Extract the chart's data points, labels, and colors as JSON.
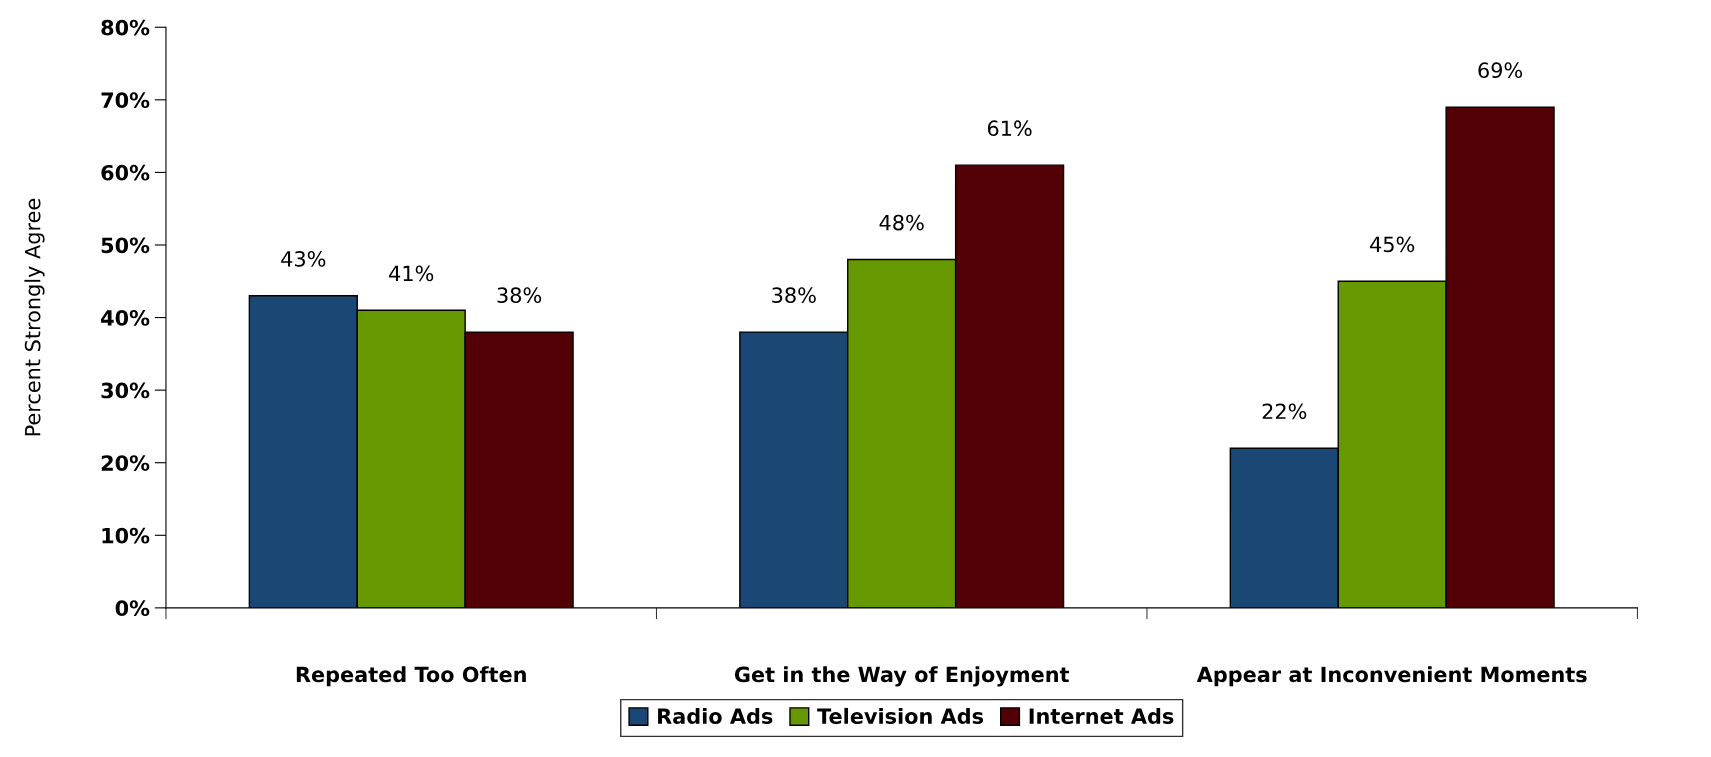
{
  "chart_data": {
    "type": "bar",
    "ylabel": "Percent Strongly Agree",
    "categories": [
      "Repeated Too Often",
      "Get in the Way of Enjoyment",
      "Appear at Inconvenient Moments"
    ],
    "series": [
      {
        "name": "Radio Ads",
        "color": "#1b4775",
        "values": [
          43,
          38,
          22
        ],
        "value_labels": [
          "43%",
          "38%",
          "22%"
        ]
      },
      {
        "name": "Television Ads",
        "color": "#669900",
        "values": [
          41,
          48,
          45
        ],
        "value_labels": [
          "41%",
          "48%",
          "45%"
        ]
      },
      {
        "name": "Internet Ads",
        "color": "#520006",
        "values": [
          38,
          61,
          69
        ],
        "value_labels": [
          "38%",
          "61%",
          "69%"
        ]
      }
    ],
    "ylim": [
      0,
      80
    ],
    "yticks": [
      {
        "value": 0,
        "label": "0%"
      },
      {
        "value": 10,
        "label": "10%"
      },
      {
        "value": 20,
        "label": "20%"
      },
      {
        "value": 30,
        "label": "30%"
      },
      {
        "value": 40,
        "label": "40%"
      },
      {
        "value": 50,
        "label": "50%"
      },
      {
        "value": 60,
        "label": "60%"
      },
      {
        "value": 70,
        "label": "70%"
      },
      {
        "value": 80,
        "label": "80%"
      }
    ],
    "grid": false,
    "legend": "bottom"
  }
}
